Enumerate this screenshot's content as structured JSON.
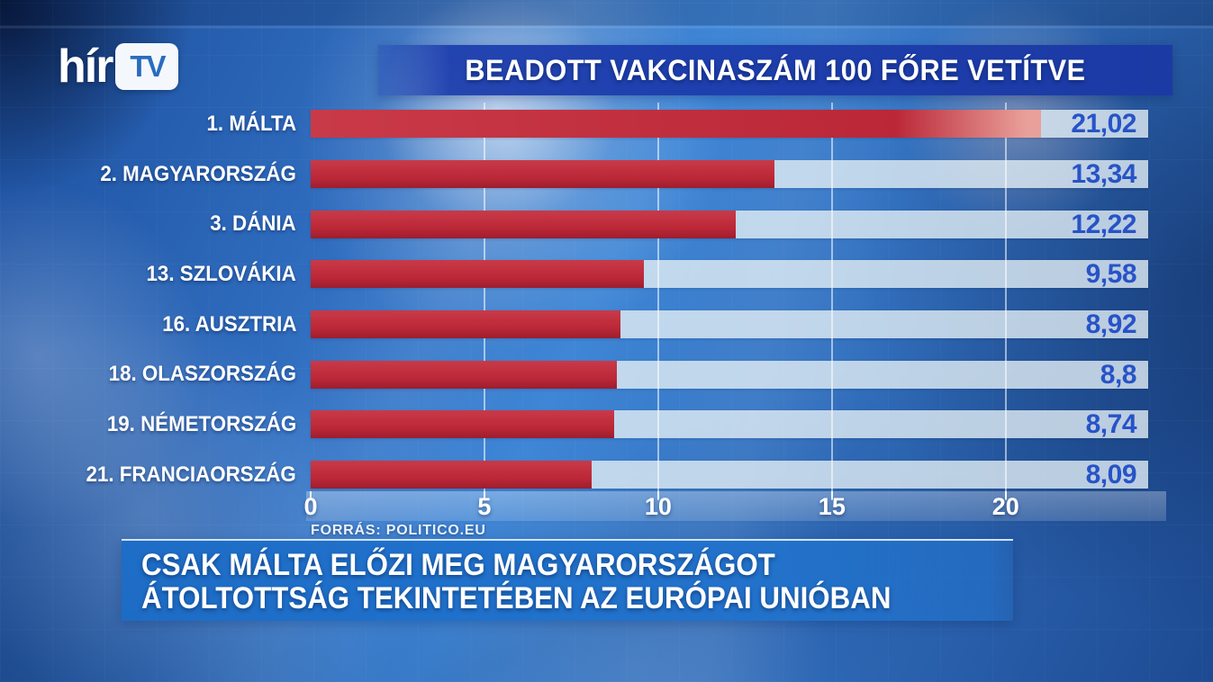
{
  "logo": {
    "text": "hír",
    "badge": "TV"
  },
  "header": {
    "title": "BEADOTT VAKCINASZÁM 100 FŐRE VETÍTVE"
  },
  "source": {
    "label": "FORRÁS: POLITICO.EU"
  },
  "caption": {
    "line1": "CSAK MÁLTA ELŐZI MEG MAGYARORSZÁGOT",
    "line2": "ÁTOLTOTTSÁG TEKINTETÉBEN AZ EURÓPAI UNIÓBAN"
  },
  "chart_data": {
    "type": "bar",
    "orientation": "horizontal",
    "title": "BEADOTT VAKCINASZÁM 100 FŐRE VETÍTVE",
    "categories": [
      "1. MÁLTA",
      "2. MAGYARORSZÁG",
      "3. DÁNIA",
      "13. SZLOVÁKIA",
      "16. AUSZTRIA",
      "18. OLASZORSZÁG",
      "19. NÉMETORSZÁG",
      "21. FRANCIAORSZÁG"
    ],
    "values": [
      21.02,
      13.34,
      12.22,
      9.58,
      8.92,
      8.8,
      8.74,
      8.09
    ],
    "value_labels": [
      "21,02",
      "13,34",
      "12,22",
      "9,58",
      "8,92",
      "8,8",
      "8,74",
      "8,09"
    ],
    "x_ticks": [
      0,
      5,
      10,
      15,
      20
    ],
    "x_tick_labels": [
      "0",
      "5",
      "10",
      "15",
      "20"
    ],
    "xlim": [
      0,
      24.1
    ],
    "grid": true,
    "legend": false,
    "source": "FORRÁS: POLITICO.EU",
    "colors": {
      "bar": "#bb2737",
      "bar_top": "#c93a48",
      "bar_dark": "#9c1e2e",
      "bar_tip": "#e9a09a",
      "track": "rgba(226,237,244,0.80)",
      "value_text": "#2753c8",
      "grid_line": "rgba(255,255,255,0.55)",
      "title_band": "#1e3fae",
      "caption_band": "#1b6cc7",
      "label_text": "#ffffff"
    }
  }
}
